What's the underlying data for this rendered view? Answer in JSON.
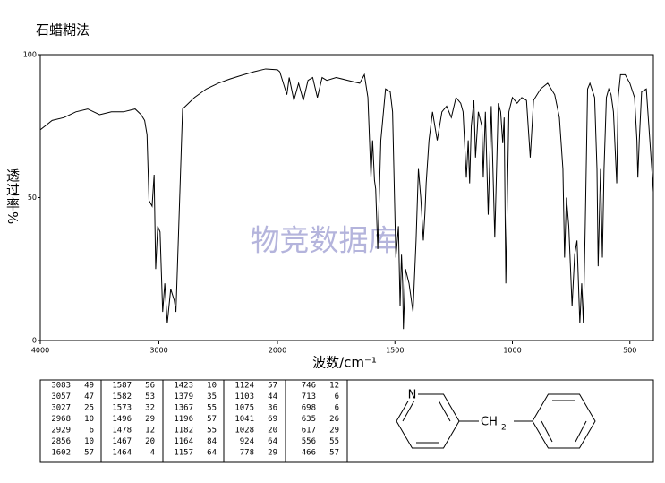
{
  "chart_data": {
    "type": "line",
    "title": "石蜡糊法",
    "ylabel": "透过率%",
    "xlabel": "波数/cm⁻¹",
    "watermark": "物竞数据库",
    "xlim": [
      4000,
      400
    ],
    "xbreak": 2000,
    "xticks": [
      4000,
      3000,
      2000,
      1500,
      1000,
      500
    ],
    "ylim": [
      0,
      100
    ],
    "yticks": [
      0,
      50,
      100
    ],
    "grid": false,
    "x": [
      4000,
      3900,
      3800,
      3700,
      3600,
      3500,
      3400,
      3300,
      3200,
      3150,
      3120,
      3100,
      3083,
      3057,
      3040,
      3027,
      3010,
      2990,
      2968,
      2950,
      2929,
      2900,
      2870,
      2856,
      2840,
      2800,
      2750,
      2700,
      2600,
      2500,
      2400,
      2300,
      2200,
      2100,
      2000,
      1990,
      1960,
      1950,
      1930,
      1910,
      1890,
      1870,
      1850,
      1830,
      1810,
      1790,
      1750,
      1700,
      1650,
      1630,
      1615,
      1602,
      1595,
      1587,
      1582,
      1573,
      1560,
      1540,
      1520,
      1510,
      1496,
      1485,
      1478,
      1472,
      1467,
      1464,
      1455,
      1440,
      1423,
      1410,
      1400,
      1390,
      1379,
      1372,
      1367,
      1355,
      1340,
      1320,
      1300,
      1280,
      1260,
      1240,
      1220,
      1210,
      1196,
      1188,
      1182,
      1175,
      1164,
      1157,
      1145,
      1130,
      1124,
      1115,
      1103,
      1090,
      1075,
      1060,
      1050,
      1041,
      1035,
      1028,
      1015,
      1000,
      980,
      960,
      940,
      924,
      910,
      880,
      850,
      820,
      800,
      785,
      778,
      770,
      760,
      746,
      735,
      725,
      713,
      705,
      698,
      690,
      680,
      670,
      650,
      640,
      635,
      625,
      617,
      610,
      600,
      590,
      580,
      570,
      556,
      550,
      540,
      520,
      500,
      480,
      470,
      466,
      460,
      450,
      430,
      415,
      400
    ],
    "series": [
      {
        "color": "#000000",
        "values": [
          73.7,
          77,
          78,
          80,
          81,
          79,
          80,
          80,
          81,
          79,
          77,
          72,
          49,
          47,
          58,
          25,
          40,
          38,
          10,
          20,
          6,
          18,
          14,
          10,
          30,
          81,
          83,
          85,
          88,
          90,
          91.5,
          92.8,
          94,
          95,
          94.7,
          94,
          86,
          92,
          84,
          90,
          84,
          91,
          92,
          85,
          92,
          91,
          92,
          91,
          90,
          93,
          85,
          57,
          70,
          56,
          53,
          32,
          70,
          88,
          87,
          80,
          29,
          40,
          12,
          30,
          20,
          4,
          25,
          20,
          10,
          35,
          60,
          50,
          35,
          45,
          55,
          70,
          80,
          70,
          80,
          82,
          78,
          85,
          83,
          80,
          57,
          70,
          55,
          75,
          84,
          64,
          80,
          75,
          57,
          80,
          44,
          82,
          36,
          83,
          80,
          69,
          78,
          20,
          80,
          85,
          83,
          85,
          84,
          64,
          84,
          88,
          90,
          86,
          78,
          60,
          29,
          50,
          40,
          12,
          30,
          35,
          6,
          20,
          6,
          40,
          88,
          90,
          85,
          60,
          26,
          60,
          29,
          60,
          85,
          88,
          86,
          80,
          55,
          85,
          93,
          93,
          90,
          85,
          70,
          57,
          70,
          87,
          88,
          70,
          52
        ]
      }
    ]
  },
  "peak_table": [
    [
      [
        3083,
        49
      ],
      [
        3057,
        47
      ],
      [
        3027,
        25
      ],
      [
        2968,
        10
      ],
      [
        2929,
        6
      ],
      [
        2856,
        10
      ],
      [
        1602,
        57
      ]
    ],
    [
      [
        1587,
        56
      ],
      [
        1582,
        53
      ],
      [
        1573,
        32
      ],
      [
        1496,
        29
      ],
      [
        1478,
        12
      ],
      [
        1467,
        20
      ],
      [
        1464,
        4
      ]
    ],
    [
      [
        1423,
        10
      ],
      [
        1379,
        35
      ],
      [
        1367,
        55
      ],
      [
        1196,
        57
      ],
      [
        1182,
        55
      ],
      [
        1164,
        84
      ],
      [
        1157,
        64
      ]
    ],
    [
      [
        1124,
        57
      ],
      [
        1103,
        44
      ],
      [
        1075,
        36
      ],
      [
        1041,
        69
      ],
      [
        1028,
        20
      ],
      [
        924,
        64
      ],
      [
        778,
        29
      ]
    ],
    [
      [
        746,
        12
      ],
      [
        713,
        6
      ],
      [
        698,
        6
      ],
      [
        635,
        26
      ],
      [
        617,
        29
      ],
      [
        556,
        55
      ],
      [
        466,
        57
      ]
    ]
  ],
  "structure": {
    "ring_atom": "N",
    "linker": "CH",
    "linker_sub": "2"
  }
}
